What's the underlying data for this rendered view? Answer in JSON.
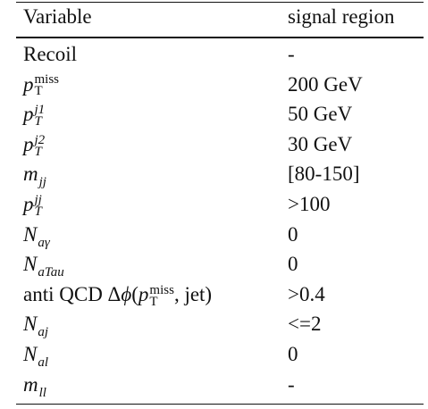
{
  "table": {
    "header": [
      "Variable",
      "signal region"
    ],
    "rows": [
      {
        "variable": [
          {
            "text": "Recoil"
          }
        ],
        "value": "-"
      },
      {
        "variable": [
          {
            "text": "p",
            "italic": true,
            "sub": "T",
            "sup": "miss"
          }
        ],
        "value": "200 GeV"
      },
      {
        "variable": [
          {
            "text": "p",
            "italic": true,
            "sub": "T",
            "sub_italic": true,
            "sup": "j1",
            "sup_italic": true
          }
        ],
        "value": "50 GeV"
      },
      {
        "variable": [
          {
            "text": "p",
            "italic": true,
            "sub": "T",
            "sub_italic": true,
            "sup": "j2",
            "sup_italic": true
          }
        ],
        "value": "30 GeV"
      },
      {
        "variable": [
          {
            "text": "m",
            "italic": true,
            "sub": "jj",
            "sub_italic": true
          }
        ],
        "value": "[80-150]"
      },
      {
        "variable": [
          {
            "text": "p",
            "italic": true,
            "sub": "T",
            "sub_italic": true,
            "sup": "jj",
            "sup_italic": true
          }
        ],
        "value": ">100"
      },
      {
        "variable": [
          {
            "text": "N",
            "italic": true,
            "sub": "aγ",
            "sub_italic": true
          }
        ],
        "value": "0"
      },
      {
        "variable": [
          {
            "text": "N",
            "italic": true,
            "sub": "aTau",
            "sub_italic": true
          }
        ],
        "value": "0"
      },
      {
        "variable": [
          {
            "text": "anti QCD Δ"
          },
          {
            "text": "ϕ",
            "italic": true
          },
          {
            "text": "("
          },
          {
            "text": "p",
            "italic": true,
            "sub": "T",
            "sup": "miss"
          },
          {
            "text": ", jet)"
          }
        ],
        "value": ">0.4"
      },
      {
        "variable": [
          {
            "text": "N",
            "italic": true,
            "sub": "aj",
            "sub_italic": true
          }
        ],
        "value": "<=2"
      },
      {
        "variable": [
          {
            "text": "N",
            "italic": true,
            "sub": "al",
            "sub_italic": true
          }
        ],
        "value": "0"
      },
      {
        "variable": [
          {
            "text": "m",
            "italic": true,
            "sub": "ll",
            "sub_italic": true
          }
        ],
        "value": "-"
      }
    ]
  }
}
